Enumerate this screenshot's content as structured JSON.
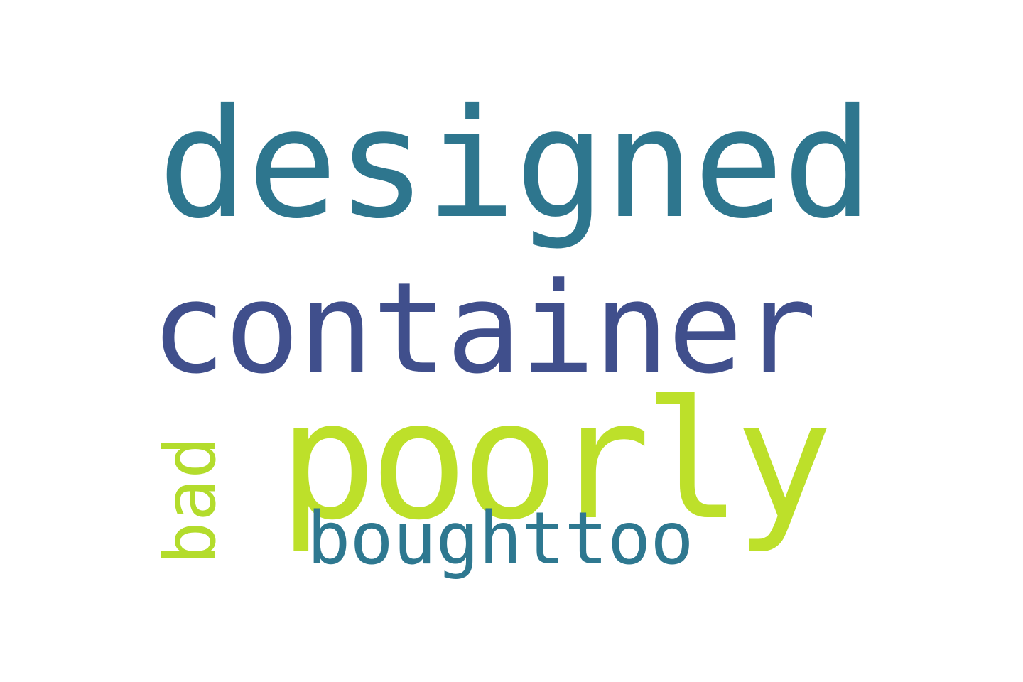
{
  "word_cloud": {
    "words": [
      {
        "id": "designed",
        "text": "designed",
        "color": "#2e768e"
      },
      {
        "id": "container",
        "text": "container",
        "color": "#404f8c"
      },
      {
        "id": "poorly",
        "text": "poorly",
        "color": "#bde02a"
      },
      {
        "id": "boughttoo",
        "text": "boughttoo",
        "color": "#2e7890"
      },
      {
        "id": "bad",
        "text": "bad",
        "color": "#b3dc2c",
        "orientation": "vertical"
      }
    ]
  }
}
